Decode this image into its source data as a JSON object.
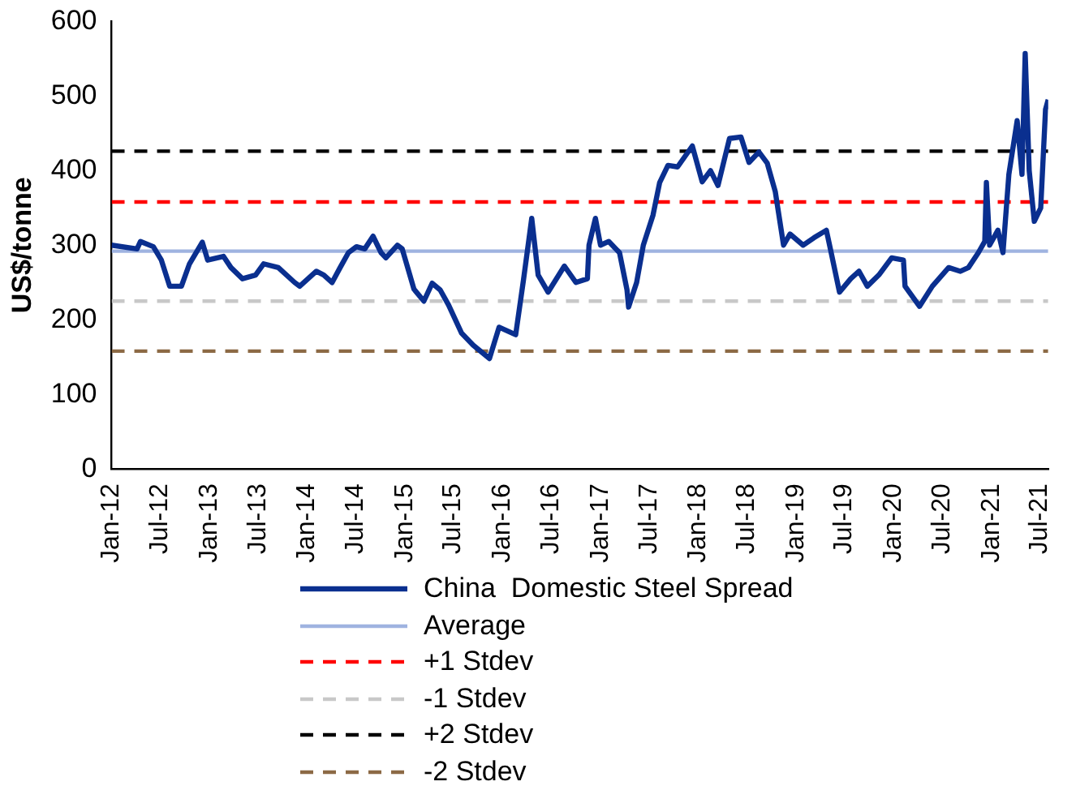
{
  "chart_data": {
    "type": "line",
    "ylabel": "US$/tonne",
    "ylim": [
      0,
      600
    ],
    "yticks": [
      0,
      100,
      200,
      300,
      400,
      500,
      600
    ],
    "xlim": [
      "2012-01",
      "2021-08"
    ],
    "xticks": [
      {
        "value": "2012-01",
        "label": "Jan-12"
      },
      {
        "value": "2012-07",
        "label": "Jul-12"
      },
      {
        "value": "2013-01",
        "label": "Jan-13"
      },
      {
        "value": "2013-07",
        "label": "Jul-13"
      },
      {
        "value": "2014-01",
        "label": "Jan-14"
      },
      {
        "value": "2014-07",
        "label": "Jul-14"
      },
      {
        "value": "2015-01",
        "label": "Jan-15"
      },
      {
        "value": "2015-07",
        "label": "Jul-15"
      },
      {
        "value": "2016-01",
        "label": "Jan-16"
      },
      {
        "value": "2016-07",
        "label": "Jul-16"
      },
      {
        "value": "2017-01",
        "label": "Jan-17"
      },
      {
        "value": "2017-07",
        "label": "Jul-17"
      },
      {
        "value": "2018-01",
        "label": "Jan-18"
      },
      {
        "value": "2018-07",
        "label": "Jul-18"
      },
      {
        "value": "2019-01",
        "label": "Jan-19"
      },
      {
        "value": "2019-07",
        "label": "Jul-19"
      },
      {
        "value": "2020-01",
        "label": "Jan-20"
      },
      {
        "value": "2020-07",
        "label": "Jul-20"
      },
      {
        "value": "2021-01",
        "label": "Jan-21"
      },
      {
        "value": "2021-07",
        "label": "Jul-21"
      }
    ],
    "grid": false,
    "legend": "bottom",
    "marker": "none",
    "series": [
      {
        "name": "China  Domestic Steel Spread",
        "color": "#0a2f8f",
        "line_style": "solid",
        "x": [
          "2012-01-01",
          "2012-04-05",
          "2012-04-18",
          "2012-06-05",
          "2012-07-05",
          "2012-08-05",
          "2012-09-18",
          "2012-10-18",
          "2012-12-05",
          "2012-12-25",
          "2013-02-22",
          "2013-03-22",
          "2013-05-04",
          "2013-06-22",
          "2013-07-22",
          "2013-09-15",
          "2013-11-15",
          "2013-12-04",
          "2014-02-04",
          "2014-03-04",
          "2014-04-04",
          "2014-05-04",
          "2014-06-04",
          "2014-07-04",
          "2014-08-04",
          "2014-09-04",
          "2014-10-04",
          "2014-10-22",
          "2014-12-04",
          "2014-12-22",
          "2015-02-04",
          "2015-03-13",
          "2015-04-13",
          "2015-05-13",
          "2015-06-13",
          "2015-08-01",
          "2015-09-13",
          "2015-11-13",
          "2015-12-19",
          "2016-02-19",
          "2016-03-19",
          "2016-04-19",
          "2016-05-13",
          "2016-06-19",
          "2016-08-19",
          "2016-10-01",
          "2016-11-13",
          "2016-11-19",
          "2016-12-13",
          "2017-01-01",
          "2017-02-01",
          "2017-03-13",
          "2017-04-10",
          "2017-04-16",
          "2017-05-16",
          "2017-06-10",
          "2017-07-16",
          "2017-08-10",
          "2017-09-10",
          "2017-10-16",
          "2017-12-10",
          "2018-01-16",
          "2018-02-16",
          "2018-03-16",
          "2018-04-28",
          "2018-06-10",
          "2018-07-10",
          "2018-08-16",
          "2018-09-16",
          "2018-10-16",
          "2018-11-16",
          "2018-12-10",
          "2019-01-28",
          "2019-03-10",
          "2019-04-25",
          "2019-05-13",
          "2019-06-13",
          "2019-07-25",
          "2019-08-25",
          "2019-09-25",
          "2019-11-07",
          "2019-12-25",
          "2020-02-07",
          "2020-02-13",
          "2020-04-07",
          "2020-05-25",
          "2020-07-25",
          "2020-09-07",
          "2020-10-07",
          "2020-11-13",
          "2020-12-07",
          "2020-12-13",
          "2020-12-25",
          "2021-01-25",
          "2021-02-13",
          "2021-03-07",
          "2021-04-07",
          "2021-04-25",
          "2021-05-07",
          "2021-05-22",
          "2021-06-10",
          "2021-07-04",
          "2021-07-22",
          "2021-08-01"
        ],
        "values": [
          300,
          295,
          305,
          298,
          280,
          245,
          245,
          275,
          304,
          280,
          285,
          270,
          255,
          260,
          275,
          270,
          250,
          245,
          265,
          260,
          250,
          270,
          290,
          298,
          295,
          312,
          290,
          283,
          300,
          295,
          241,
          225,
          249,
          240,
          220,
          182,
          166,
          148,
          190,
          180,
          253,
          336,
          260,
          237,
          272,
          250,
          255,
          300,
          336,
          300,
          305,
          290,
          240,
          217,
          250,
          300,
          340,
          384,
          407,
          405,
          433,
          385,
          400,
          380,
          443,
          445,
          411,
          425,
          410,
          372,
          300,
          315,
          300,
          310,
          320,
          290,
          237,
          255,
          265,
          245,
          260,
          283,
          280,
          245,
          218,
          245,
          270,
          265,
          270,
          290,
          305,
          384,
          300,
          320,
          290,
          395,
          467,
          395,
          557,
          400,
          332,
          350,
          482,
          495
        ]
      },
      {
        "name": "Average",
        "color": "#9fb3e0",
        "line_style": "solid",
        "x": [
          "2012-01",
          "2021-08"
        ],
        "values": [
          292,
          292
        ]
      },
      {
        "name": "+1 Stdev",
        "color": "#ff0000",
        "line_style": "dashed",
        "x": [
          "2012-01",
          "2021-08"
        ],
        "values": [
          358,
          358
        ]
      },
      {
        "name": "-1 Stdev",
        "color": "#c8c8c8",
        "line_style": "dashed",
        "x": [
          "2012-01",
          "2021-08"
        ],
        "values": [
          225,
          225
        ]
      },
      {
        "name": "+2 Stdev",
        "color": "#000000",
        "line_style": "dashed",
        "x": [
          "2012-01",
          "2021-08"
        ],
        "values": [
          426,
          426
        ]
      },
      {
        "name": "-2 Stdev",
        "color": "#8c6a45",
        "line_style": "dashed",
        "x": [
          "2012-01",
          "2021-08"
        ],
        "values": [
          158,
          158
        ]
      }
    ]
  }
}
